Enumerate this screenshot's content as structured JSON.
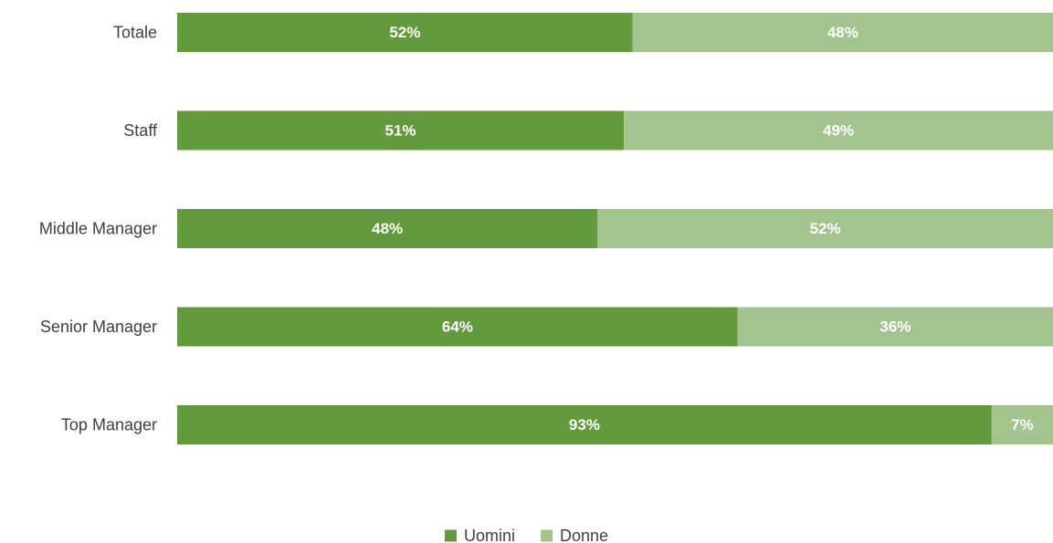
{
  "chart_data": {
    "type": "bar",
    "orientation": "horizontal",
    "stacked": true,
    "percent_stacked": true,
    "categories": [
      "Totale",
      "Staff",
      "Middle Manager",
      "Senior Manager",
      "Top Manager"
    ],
    "series": [
      {
        "name": "Uomini",
        "color": "#629a3d",
        "values": [
          52,
          51,
          48,
          64,
          93
        ],
        "labels": [
          "52%",
          "51%",
          "48%",
          "64%",
          "93%"
        ]
      },
      {
        "name": "Donne",
        "color": "#a3c48f",
        "values": [
          48,
          49,
          52,
          36,
          7
        ],
        "labels": [
          "48%",
          "49%",
          "52%",
          "36%",
          "7%"
        ]
      }
    ],
    "xlim": [
      0,
      100
    ],
    "grid": false,
    "legend": "bottom-center"
  }
}
